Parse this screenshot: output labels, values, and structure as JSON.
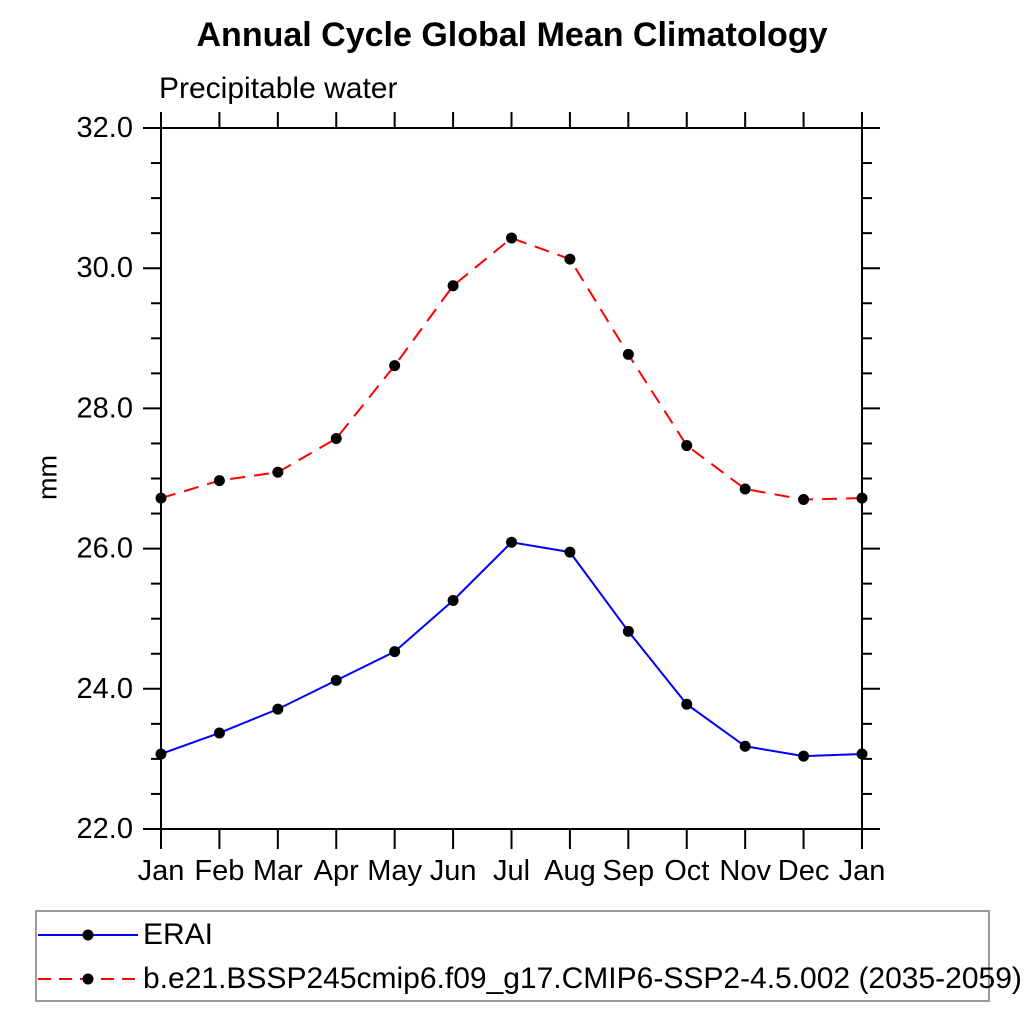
{
  "chart_data": {
    "type": "line",
    "title": "Annual Cycle Global Mean Climatology",
    "subtitle": "Precipitable water",
    "ylabel": "mm",
    "xlabel": "",
    "x_tick_labels": [
      "Jan",
      "Feb",
      "Mar",
      "Apr",
      "May",
      "Jun",
      "Jul",
      "Aug",
      "Sep",
      "Oct",
      "Nov",
      "Dec",
      "Jan"
    ],
    "y_tick_values": [
      22.0,
      24.0,
      26.0,
      28.0,
      30.0,
      32.0
    ],
    "y_tick_labels": [
      "22.0",
      "24.0",
      "26.0",
      "28.0",
      "30.0",
      "32.0"
    ],
    "ylim": [
      22.0,
      32.0
    ],
    "y_minor_step": 0.5,
    "grid": false,
    "legend_position": "bottom",
    "axis_color": "#000000",
    "marker_shape": "filled-circle",
    "series": [
      {
        "name": "ERAI",
        "color": "#0000ff",
        "style": "solid",
        "marker_color": "#000000",
        "values": [
          23.07,
          23.37,
          23.71,
          24.12,
          24.53,
          25.26,
          26.09,
          25.95,
          24.82,
          23.78,
          23.18,
          23.04,
          23.07
        ]
      },
      {
        "name": "b.e21.BSSP245cmip6.f09_g17.CMIP6-SSP2-4.5.002 (2035-2059)",
        "color": "#ff0000",
        "style": "dashed",
        "marker_color": "#000000",
        "values": [
          26.72,
          26.97,
          27.09,
          27.57,
          28.61,
          29.75,
          30.43,
          30.13,
          28.77,
          27.47,
          26.85,
          26.7,
          26.72
        ]
      }
    ]
  }
}
